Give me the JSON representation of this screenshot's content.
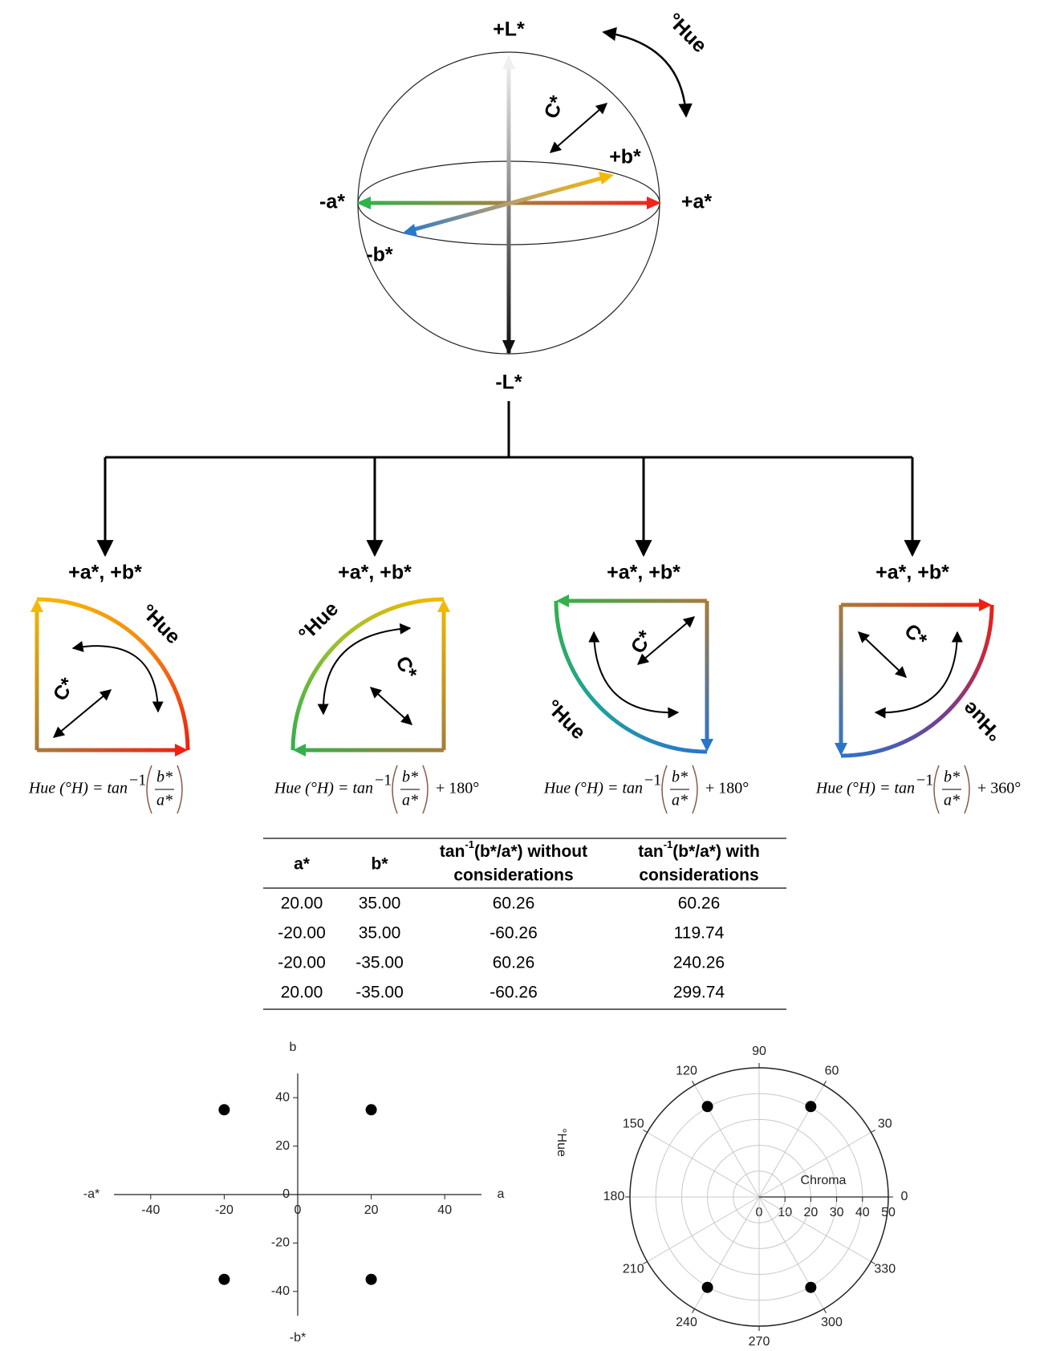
{
  "sphere": {
    "l_pos": "+L*",
    "l_neg": "-L*",
    "a_pos": "+a*",
    "a_neg": "-a*",
    "b_pos": "+b*",
    "b_neg": "-b*",
    "chroma": "C*",
    "hue": "°Hue"
  },
  "quadrants": [
    {
      "header": "+a*, +b*",
      "hue": "°Hue",
      "chroma": "C*",
      "formula": {
        "lhs": "Hue (°H) = tan",
        "sup": "−1",
        "numerator": "b*",
        "denominator": "a*"
      }
    },
    {
      "header": "+a*, +b*",
      "hue": "°Hue",
      "chroma": "C*",
      "formula": {
        "lhs": "Hue (°H) = tan",
        "sup": "−1",
        "numerator": "b*",
        "denominator": "a*",
        "offset": "+ 180°"
      }
    },
    {
      "header": "+a*, +b*",
      "hue": "°Hue",
      "chroma": "C*",
      "formula": {
        "lhs": "Hue (°H) = tan",
        "sup": "−1",
        "numerator": "b*",
        "denominator": "a*",
        "offset": "+ 180°"
      }
    },
    {
      "header": "+a*, +b*",
      "hue": "°Hue",
      "chroma": "C*",
      "formula": {
        "lhs": "Hue (°H) = tan",
        "sup": "−1",
        "numerator": "b*",
        "denominator": "a*",
        "offset": "+ 360°"
      }
    }
  ],
  "table": {
    "headers": [
      {
        "text": "a*"
      },
      {
        "text": "b*"
      },
      {
        "pre": "tan",
        "sup": "-1",
        "post": "(b*/a*) without",
        "line2": "considerations"
      },
      {
        "pre": "tan",
        "sup": "-1",
        "post": "(b*/a*) with",
        "line2": "considerations"
      }
    ],
    "rows": [
      [
        "20.00",
        "35.00",
        "60.26",
        "60.26"
      ],
      [
        "-20.00",
        "35.00",
        "-60.26",
        "119.74"
      ],
      [
        "-20.00",
        "-35.00",
        "60.26",
        "240.26"
      ],
      [
        "20.00",
        "-35.00",
        "-60.26",
        "299.74"
      ]
    ]
  },
  "chart_data": [
    {
      "type": "scatter",
      "x_label": "a",
      "y_label": "b",
      "x_neg_label": "-a*",
      "y_neg_label": "-b*",
      "x": [
        20,
        -20,
        -20,
        20
      ],
      "y": [
        35,
        35,
        -35,
        -35
      ],
      "color": "#000000",
      "xlim": [
        -50,
        50
      ],
      "ylim": [
        -50,
        50
      ],
      "xticks": [
        -40,
        -20,
        0,
        20,
        40
      ],
      "yticks": [
        -40,
        -20,
        0,
        20,
        40
      ]
    },
    {
      "type": "polar",
      "r_label": "Chroma",
      "theta_label": "°Hue",
      "theta": [
        60.26,
        119.74,
        240.26,
        299.74
      ],
      "r": [
        40.31,
        40.31,
        40.31,
        40.31
      ],
      "color": "#000000",
      "rlim": [
        0,
        50
      ],
      "rticks": [
        0,
        10,
        20,
        30,
        40,
        50
      ],
      "thetaticks": [
        0,
        30,
        60,
        90,
        120,
        150,
        180,
        210,
        240,
        270,
        300,
        330
      ],
      "grid": true
    }
  ]
}
